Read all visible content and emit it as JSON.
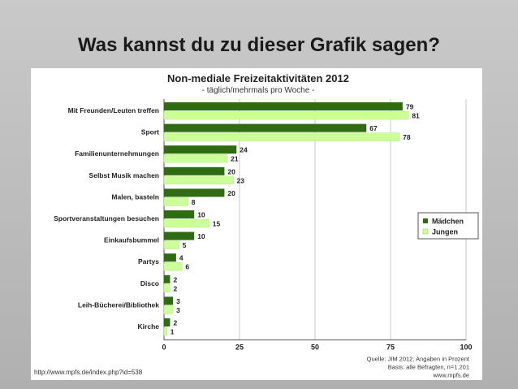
{
  "slide": {
    "title": "Was kannst du zu dieser Grafik sagen?",
    "source_url": "http://www.mpfs.de/index.php?id=538"
  },
  "chart_data": {
    "type": "bar",
    "orientation": "horizontal",
    "title": "Non-mediale Freizeitaktivitäten 2012",
    "subtitle": "- täglich/mehrmals pro Woche -",
    "categories": [
      "Mit Freunden/Leuten treffen",
      "Sport",
      "Familienunternehmungen",
      "Selbst Musik machen",
      "Malen, basteln",
      "Sportveranstaltungen besuchen",
      "Einkaufsbummel",
      "Partys",
      "Disco",
      "Leih-Bücherei/Bibliothek",
      "Kirche"
    ],
    "series": [
      {
        "name": "Mädchen",
        "color": "#2e6b12",
        "values": [
          79,
          67,
          24,
          20,
          20,
          10,
          10,
          4,
          2,
          3,
          2
        ]
      },
      {
        "name": "Jungen",
        "color": "#ccff99",
        "values": [
          81,
          78,
          21,
          23,
          8,
          15,
          5,
          6,
          2,
          3,
          1
        ]
      }
    ],
    "xlim": [
      0,
      100
    ],
    "xticks": [
      0,
      25,
      50,
      75,
      100
    ],
    "legend": "right",
    "notes": [
      "Quelle: JIM 2012, Angaben in Prozent",
      "Basis: alle Befragten, n=1.201",
      "www.mpfs.de"
    ]
  }
}
